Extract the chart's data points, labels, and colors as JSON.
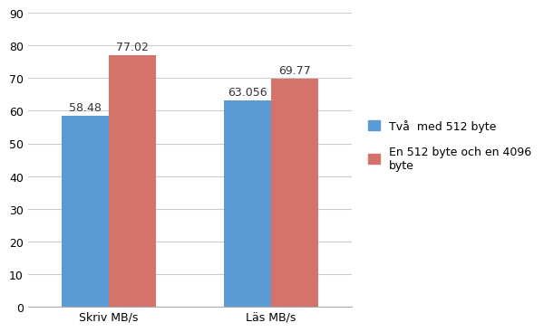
{
  "categories": [
    "Skriv MB/s",
    "Läs MB/s"
  ],
  "series": [
    {
      "label": "Två  med 512 byte",
      "values": [
        58.48,
        63.056
      ],
      "color": "#5b9bd5"
    },
    {
      "label": "En 512 byte och en 4096\nbyte",
      "values": [
        77.02,
        69.77
      ],
      "color": "#d4736a"
    }
  ],
  "ylim": [
    0,
    90
  ],
  "yticks": [
    0,
    10,
    20,
    30,
    40,
    50,
    60,
    70,
    80,
    90
  ],
  "bar_width": 0.35,
  "background_color": "#ffffff",
  "grid_color": "#cccccc",
  "annotation_fontsize": 9,
  "tick_fontsize": 9,
  "legend_fontsize": 9
}
